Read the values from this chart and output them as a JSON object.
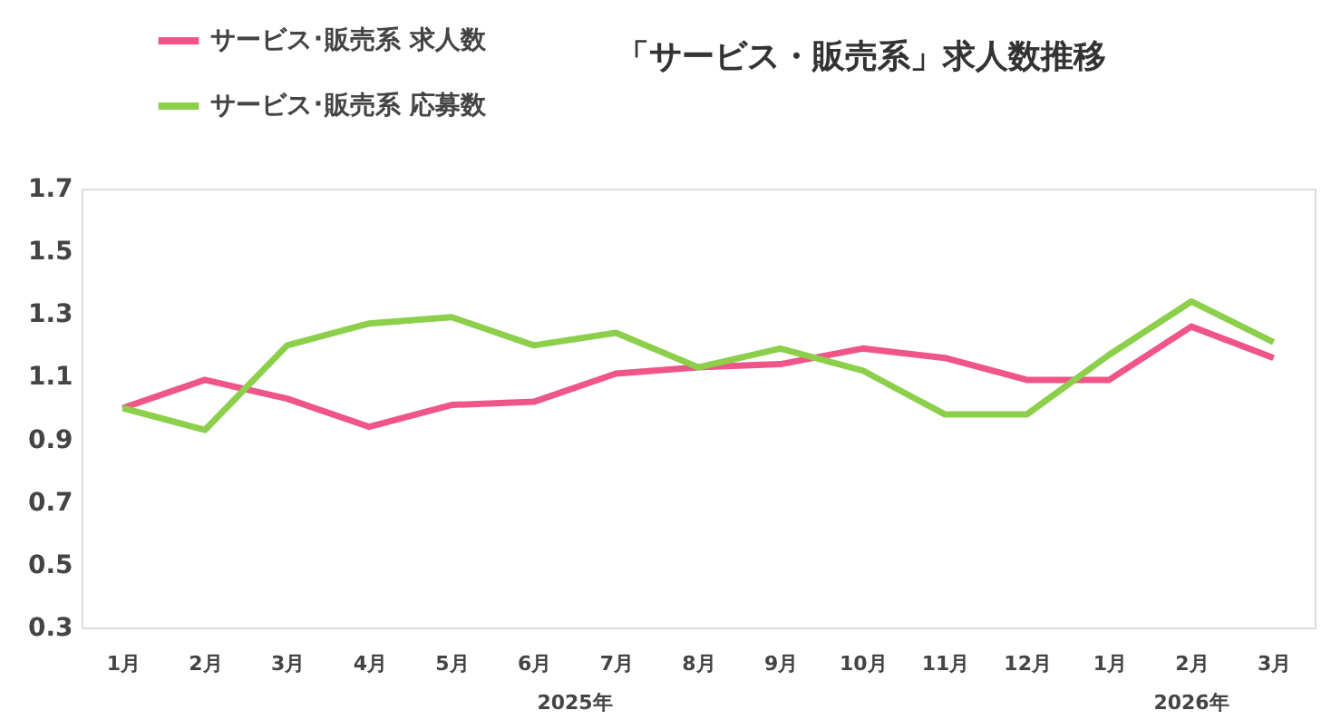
{
  "chart_data": {
    "type": "line",
    "title": "「サービス・販売系」求人数推移",
    "categories": [
      "1月",
      "2月",
      "3月",
      "4月",
      "5月",
      "6月",
      "7月",
      "8月",
      "9月",
      "10月",
      "11月",
      "12月",
      "1月",
      "2月",
      "3月"
    ],
    "annotations": [
      "2025年",
      "2026年"
    ],
    "series": [
      {
        "name": "サービス･販売系 求人数",
        "color": "#ef5586",
        "values": [
          1.0,
          1.09,
          1.03,
          0.94,
          1.01,
          1.02,
          1.11,
          1.13,
          1.14,
          1.19,
          1.16,
          1.09,
          1.09,
          1.26,
          1.16
        ]
      },
      {
        "name": "サービス･販売系 応募数",
        "color": "#8ccf4a",
        "values": [
          1.0,
          0.93,
          1.2,
          1.27,
          1.29,
          1.2,
          1.24,
          1.13,
          1.19,
          1.12,
          0.98,
          0.98,
          1.17,
          1.34,
          1.21
        ]
      }
    ],
    "ylim": [
      0.3,
      1.7
    ],
    "yticks": [
      0.3,
      0.5,
      0.7,
      0.9,
      1.1,
      1.3,
      1.5,
      1.7
    ],
    "grid": false,
    "legend": "top left",
    "marker": "none",
    "line_style": "solid"
  }
}
